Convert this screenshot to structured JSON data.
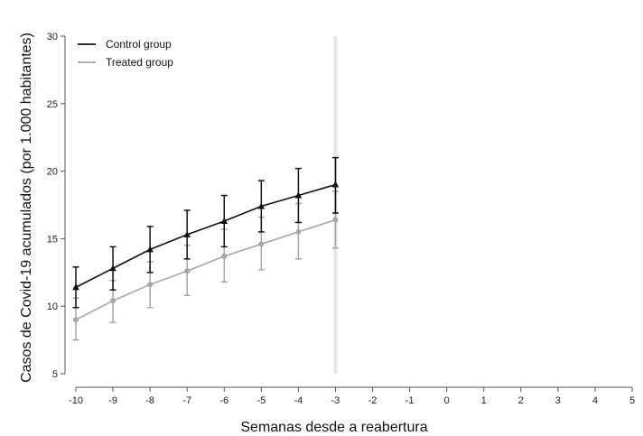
{
  "chart_data": {
    "type": "line",
    "xlabel": "Semanas desde a reabertura",
    "ylabel": "Casos de Covid-19 acumulados (por 1.000 habitantes)",
    "xlim": [
      -10,
      5
    ],
    "ylim": [
      5,
      30
    ],
    "xticks": [
      "-10",
      "-9",
      "-8",
      "-7",
      "-6",
      "-5",
      "-4",
      "-3",
      "-2",
      "-1",
      "0",
      "1",
      "2",
      "3",
      "4",
      "5"
    ],
    "yticks": [
      "5",
      "10",
      "15",
      "20",
      "25",
      "30"
    ],
    "reference_line_x": -3,
    "grid": false,
    "legend_position": "top-left",
    "x": [
      -10,
      -9,
      -8,
      -7,
      -6,
      -5,
      -4,
      -3
    ],
    "series": [
      {
        "name": "Control group",
        "color": "#111111",
        "marker": "triangle",
        "values": [
          11.4,
          12.8,
          14.2,
          15.3,
          16.3,
          17.4,
          18.2,
          19.0
        ],
        "upper": [
          12.9,
          14.4,
          15.9,
          17.1,
          18.2,
          19.3,
          20.2,
          21.0
        ],
        "lower": [
          9.9,
          11.2,
          12.5,
          13.5,
          14.4,
          15.5,
          16.2,
          16.9
        ]
      },
      {
        "name": "Treated group",
        "color": "#a6a6a6",
        "marker": "circle",
        "values": [
          9.0,
          10.4,
          11.6,
          12.6,
          13.7,
          14.6,
          15.5,
          16.4
        ],
        "upper": [
          10.6,
          11.9,
          13.3,
          14.5,
          15.7,
          16.6,
          17.6,
          18.5
        ],
        "lower": [
          7.5,
          8.8,
          9.9,
          10.8,
          11.8,
          12.7,
          13.5,
          14.3
        ]
      }
    ]
  }
}
